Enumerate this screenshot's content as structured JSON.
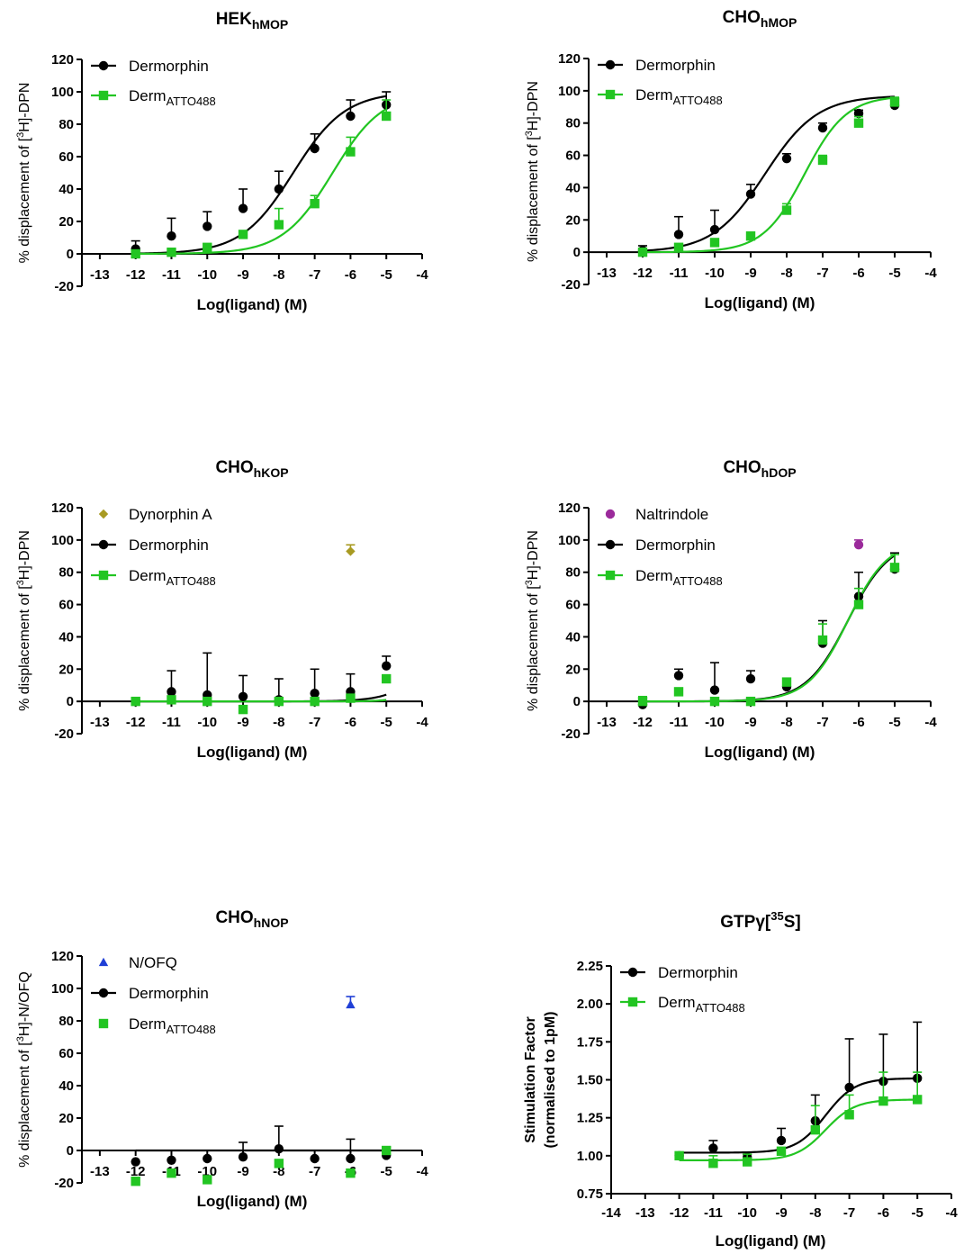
{
  "chart_data": [
    {
      "type": "scatter",
      "title": "HEK",
      "title_sub": "hMOP",
      "ylabel_parts": [
        "% displacement of [",
        "3",
        "H]-DPN"
      ],
      "xlabel": "Log(ligand) (M)",
      "xlim": [
        -13.5,
        -4
      ],
      "xticks": [
        -13,
        -12,
        -11,
        -10,
        -9,
        -8,
        -7,
        -6,
        -5,
        -4
      ],
      "ylim": [
        -20,
        120
      ],
      "yticks": [
        -20,
        0,
        20,
        40,
        60,
        80,
        100,
        120
      ],
      "legend": "top-left",
      "series": [
        {
          "name": "Dermorphin",
          "name_sub": "",
          "color": "#000000",
          "marker": "circle",
          "x": [
            -12,
            -11,
            -10,
            -9,
            -8,
            -7,
            -6,
            -5
          ],
          "y": [
            3,
            11,
            17,
            28,
            40,
            65,
            85,
            92
          ],
          "err": [
            5,
            11,
            9,
            12,
            11,
            9,
            10,
            8
          ],
          "fit": {
            "bottom": 0,
            "top": 100,
            "log_ec50": -7.6,
            "hill": 0.6
          }
        },
        {
          "name": "Derm",
          "name_sub": "ATTO488",
          "color": "#22c522",
          "marker": "square",
          "x": [
            -12,
            -11,
            -10,
            -9,
            -8,
            -7,
            -6,
            -5
          ],
          "y": [
            0,
            1,
            4,
            12,
            18,
            31,
            63,
            85
          ],
          "err": [
            0,
            0,
            0,
            0,
            10,
            5,
            9,
            10
          ],
          "fit": {
            "bottom": 0,
            "top": 100,
            "log_ec50": -6.5,
            "hill": 0.62
          }
        }
      ]
    },
    {
      "type": "scatter",
      "title": "CHO",
      "title_sub": "hMOP",
      "ylabel_parts": [
        "% displacement of [",
        "3",
        "H]-DPN"
      ],
      "xlabel": "Log(ligand) (M)",
      "xlim": [
        -13.5,
        -4
      ],
      "xticks": [
        -13,
        -12,
        -11,
        -10,
        -9,
        -8,
        -7,
        -6,
        -5,
        -4
      ],
      "ylim": [
        -20,
        120
      ],
      "yticks": [
        -20,
        0,
        20,
        40,
        60,
        80,
        100,
        120
      ],
      "legend": "top-left",
      "series": [
        {
          "name": "Dermorphin",
          "name_sub": "",
          "color": "#000000",
          "marker": "circle",
          "x": [
            -12,
            -11,
            -10,
            -9,
            -8,
            -7,
            -6,
            -5
          ],
          "y": [
            1,
            11,
            14,
            36,
            58,
            77,
            86,
            91
          ],
          "err": [
            3,
            11,
            12,
            6,
            3,
            3,
            2,
            3
          ],
          "fit": {
            "bottom": 0,
            "top": 97,
            "log_ec50": -8.6,
            "hill": 0.6
          }
        },
        {
          "name": "Derm",
          "name_sub": "ATTO488",
          "color": "#22c522",
          "marker": "square",
          "x": [
            -12,
            -11,
            -10,
            -9,
            -8,
            -7,
            -6,
            -5
          ],
          "y": [
            0,
            3,
            6,
            10,
            26,
            57,
            80,
            93
          ],
          "err": [
            0,
            0,
            0,
            0,
            4,
            3,
            4,
            3
          ],
          "fit": {
            "bottom": 0,
            "top": 97,
            "log_ec50": -7.5,
            "hill": 0.75
          }
        }
      ]
    },
    {
      "type": "scatter",
      "title": "CHO",
      "title_sub": "hKOP",
      "ylabel_parts": [
        "% displacement of [",
        "3",
        "H]-DPN"
      ],
      "xlabel": "Log(ligand) (M)",
      "xlim": [
        -13.5,
        -4
      ],
      "xticks": [
        -13,
        -12,
        -11,
        -10,
        -9,
        -8,
        -7,
        -6,
        -5,
        -4
      ],
      "ylim": [
        -20,
        120
      ],
      "yticks": [
        -20,
        0,
        20,
        40,
        60,
        80,
        100,
        120
      ],
      "legend": "top-left",
      "series": [
        {
          "name": "Dynorphin A",
          "name_sub": "",
          "color": "#a89a22",
          "marker": "diamond",
          "x": [
            -6
          ],
          "y": [
            93
          ],
          "err": [
            4
          ]
        },
        {
          "name": "Dermorphin",
          "name_sub": "",
          "color": "#000000",
          "marker": "circle",
          "x": [
            -12,
            -11,
            -10,
            -9,
            -8,
            -7,
            -6,
            -5
          ],
          "y": [
            0,
            6,
            4,
            3,
            1,
            5,
            6,
            22
          ],
          "err": [
            1,
            13,
            26,
            13,
            13,
            15,
            11,
            6
          ],
          "fit": {
            "bottom": 0,
            "top": 100,
            "log_ec50": -3.3,
            "hill": 0.8
          }
        },
        {
          "name": "Derm",
          "name_sub": "ATTO488",
          "color": "#22c522",
          "marker": "square",
          "x": [
            -12,
            -11,
            -10,
            -9,
            -8,
            -7,
            -6,
            -5
          ],
          "y": [
            0,
            1,
            0,
            -5,
            0,
            0,
            2,
            14
          ],
          "err": [
            0,
            0,
            0,
            0,
            0,
            0,
            0,
            0
          ],
          "fit": {
            "bottom": 0,
            "top": 100,
            "log_ec50": -3.3,
            "hill": 1.2
          }
        }
      ]
    },
    {
      "type": "scatter",
      "title": "CHO",
      "title_sub": "hDOP",
      "ylabel_parts": [
        "% displacement of [",
        "3",
        "H]-DPN"
      ],
      "xlabel": "Log(ligand) (M)",
      "xlim": [
        -13.5,
        -4
      ],
      "xticks": [
        -13,
        -12,
        -11,
        -10,
        -9,
        -8,
        -7,
        -6,
        -5,
        -4
      ],
      "ylim": [
        -20,
        120
      ],
      "yticks": [
        -20,
        0,
        20,
        40,
        60,
        80,
        100,
        120
      ],
      "legend": "top-left",
      "series": [
        {
          "name": "Naltrindole",
          "name_sub": "",
          "color": "#9b2a9b",
          "marker": "circle",
          "x": [
            -6
          ],
          "y": [
            97
          ],
          "err": [
            3
          ]
        },
        {
          "name": "Dermorphin",
          "name_sub": "",
          "color": "#000000",
          "marker": "circle",
          "x": [
            -12,
            -11,
            -10,
            -9,
            -8,
            -7,
            -6,
            -5
          ],
          "y": [
            -2,
            16,
            7,
            14,
            9,
            36,
            65,
            82
          ],
          "err": [
            0,
            4,
            17,
            5,
            0,
            14,
            15,
            10
          ],
          "fit": {
            "bottom": 0,
            "top": 100,
            "log_ec50": -6.3,
            "hill": 0.75
          }
        },
        {
          "name": "Derm",
          "name_sub": "ATTO488",
          "color": "#22c522",
          "marker": "square",
          "x": [
            -12,
            -11,
            -10,
            -9,
            -8,
            -7,
            -6,
            -5
          ],
          "y": [
            0,
            6,
            0,
            0,
            12,
            38,
            60,
            83
          ],
          "err": [
            3,
            0,
            0,
            0,
            0,
            10,
            10,
            8
          ],
          "fit": {
            "bottom": 0,
            "top": 100,
            "log_ec50": -6.3,
            "hill": 0.78
          }
        }
      ]
    },
    {
      "type": "scatter",
      "title": "CHO",
      "title_sub": "hNOP",
      "ylabel_parts": [
        "% displacement of [",
        "3",
        "H]-N/OFQ"
      ],
      "xlabel": "Log(ligand) (M)",
      "xlim": [
        -13.5,
        -4
      ],
      "xticks": [
        -13,
        -12,
        -11,
        -10,
        -9,
        -8,
        -7,
        -6,
        -5,
        -4
      ],
      "ylim": [
        -20,
        120
      ],
      "yticks": [
        -20,
        0,
        20,
        40,
        60,
        80,
        100,
        120
      ],
      "legend": "top-left",
      "series": [
        {
          "name": "N/OFQ",
          "name_sub": "",
          "color": "#1f3fd6",
          "marker": "triangle",
          "x": [
            -6
          ],
          "y": [
            90
          ],
          "err": [
            5
          ]
        },
        {
          "name": "Dermorphin",
          "name_sub": "",
          "color": "#000000",
          "marker": "circle",
          "x": [
            -12,
            -11,
            -10,
            -9,
            -8,
            -7,
            -6,
            -5
          ],
          "y": [
            -7,
            -6,
            -5,
            -4,
            1,
            -5,
            -5,
            -3
          ],
          "err": [
            0,
            0,
            0,
            9,
            14,
            0,
            12,
            5
          ],
          "fit": {
            "bottom": 0,
            "top": 0,
            "log_ec50": -8,
            "hill": 1
          }
        },
        {
          "name": "Derm",
          "name_sub": "ATTO488",
          "color": "#22c522",
          "marker": "square",
          "x": [
            -12,
            -11,
            -10,
            -8,
            -6,
            -5
          ],
          "y": [
            -19,
            -14,
            -18,
            -8,
            -14,
            0
          ],
          "err": [
            0,
            0,
            0,
            0,
            0,
            0
          ]
        }
      ]
    },
    {
      "type": "scatter",
      "title": "GTPγ[",
      "title_sup": "35",
      "title_end": "S]",
      "ylabel_parts": [
        "Stimulation Factor",
        "(normalised to 1pM)"
      ],
      "xlabel": "Log(ligand) (M)",
      "xlim": [
        -14,
        -4
      ],
      "xticks": [
        -14,
        -13,
        -12,
        -11,
        -10,
        -9,
        -8,
        -7,
        -6,
        -5,
        -4
      ],
      "ylim": [
        0.75,
        2.25
      ],
      "yticks": [
        "0.75",
        "1.00",
        "1.25",
        "1.50",
        "1.75",
        "2.00",
        "2.25"
      ],
      "legend": "top-left",
      "series": [
        {
          "name": "Dermorphin",
          "name_sub": "",
          "color": "#000000",
          "marker": "circle",
          "x": [
            -12,
            -11,
            -10,
            -9,
            -8,
            -7,
            -6,
            -5
          ],
          "y": [
            1.0,
            1.05,
            0.99,
            1.1,
            1.23,
            1.45,
            1.49,
            1.51
          ],
          "err": [
            0.02,
            0.05,
            0.02,
            0.08,
            0.17,
            0.32,
            0.31,
            0.37
          ],
          "fit": {
            "bottom": 1.02,
            "top": 1.51,
            "log_ec50": -7.7,
            "hill": 1.0
          }
        },
        {
          "name": "Derm",
          "name_sub": "ATTO488",
          "color": "#22c522",
          "marker": "square",
          "x": [
            -12,
            -11,
            -10,
            -9,
            -8,
            -7,
            -6,
            -5
          ],
          "y": [
            1.0,
            0.95,
            0.96,
            1.03,
            1.17,
            1.27,
            1.36,
            1.37
          ],
          "err": [
            0.0,
            0.05,
            0.05,
            0.0,
            0.16,
            0.13,
            0.19,
            0.18
          ],
          "fit": {
            "bottom": 0.97,
            "top": 1.37,
            "log_ec50": -7.7,
            "hill": 1.0
          }
        }
      ]
    }
  ]
}
